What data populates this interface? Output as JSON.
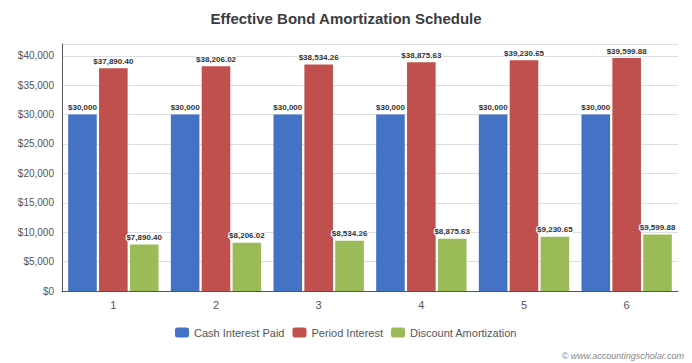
{
  "chart_data": {
    "type": "bar",
    "title": "Effective Bond Amortization Schedule",
    "categories": [
      "1",
      "2",
      "3",
      "4",
      "5",
      "6"
    ],
    "series": [
      {
        "name": "Cash Interest Paid",
        "color": "#4472C4",
        "values": [
          30000,
          30000,
          30000,
          30000,
          30000,
          30000
        ],
        "value_labels": [
          "$30,000",
          "$30,000",
          "$30,000",
          "$30,000",
          "$30,000",
          "$30,000"
        ]
      },
      {
        "name": "Period Interest",
        "color": "#C0504D",
        "values": [
          37890.4,
          38206.02,
          38534.26,
          38875.63,
          39230.65,
          39599.88
        ],
        "value_labels": [
          "$37,890.40",
          "$38,206.02",
          "$38,534.26",
          "$38,875.63",
          "$39,230.65",
          "$39,599.88"
        ]
      },
      {
        "name": "Discount Amortization",
        "color": "#9BBB59",
        "values": [
          7890.4,
          8206.02,
          8534.26,
          8875.63,
          9230.65,
          9599.88
        ],
        "value_labels": [
          "$7,890.40",
          "$8,206.02",
          "$8,534.26",
          "$8,875.63",
          "$9,230.65",
          "$9,599.88"
        ]
      }
    ],
    "ylim": [
      0,
      42000
    ],
    "yticks": [
      {
        "value": 0,
        "label": "$0"
      },
      {
        "value": 5000,
        "label": "$5,000"
      },
      {
        "value": 10000,
        "label": "$10,000"
      },
      {
        "value": 15000,
        "label": "$15,000"
      },
      {
        "value": 20000,
        "label": "$20,000"
      },
      {
        "value": 25000,
        "label": "$25,000"
      },
      {
        "value": 30000,
        "label": "$30,000"
      },
      {
        "value": 35000,
        "label": "$35,000"
      },
      {
        "value": 40000,
        "label": "$40,000"
      }
    ],
    "grid": true,
    "legend": "bottom",
    "data_labels": true,
    "annotations": [
      "© www.accountingscholar.com"
    ]
  }
}
